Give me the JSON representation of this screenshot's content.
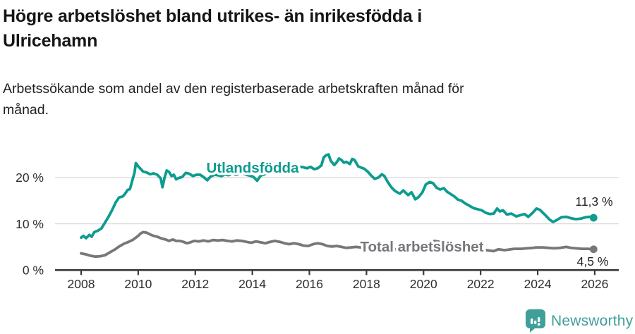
{
  "header": {
    "title": "Högre arbetslöshet bland utrikes- än inrikesfödda i Ulricehamn",
    "title_lines": [
      "Högre arbetslöshet bland utrikes- än inrikesfödda i",
      "Ulricehamn"
    ],
    "subtitle": "Arbetssökande som andel av den registerbaserade arbetskraften månad för månad.",
    "subtitle_lines": [
      "Arbetssökande som andel av den registerbaserade arbetskraften månad för",
      "månad."
    ]
  },
  "footer": {
    "brand": "Newsworthy",
    "brand_color": "#3f9f99",
    "logo_icon": "speech-bubble-bar-chart-icon"
  },
  "colors": {
    "accent_teal": "#0d9c8f",
    "series_gray": "#77777c",
    "grid": "#d9d9d9",
    "axis": "#3b3b3b",
    "text": "#2e2e2e",
    "value_label": "#222222"
  },
  "chart_data": {
    "type": "line",
    "title": "Högre arbetslöshet bland utrikes- än inrikesfödda i Ulricehamn",
    "subtitle": "Arbetssökande som andel av den registerbaserade arbetskraften månad för månad.",
    "grid": "horizontal-only",
    "legend_position": "inline-labels-on-lines",
    "x_axis": {
      "label": "",
      "ticks": [
        2008,
        2010,
        2012,
        2014,
        2016,
        2018,
        2020,
        2022,
        2024,
        2026
      ],
      "tick_labels": [
        "2008",
        "2010",
        "2012",
        "2014",
        "2016",
        "2018",
        "2020",
        "2022",
        "2024",
        "2026"
      ],
      "range": [
        2007.1,
        2026.8
      ]
    },
    "y_axis": {
      "label": "",
      "unit": "%",
      "ticks": [
        0,
        10,
        20
      ],
      "tick_labels": [
        "0 %",
        "10 %",
        "20 %"
      ],
      "range": [
        0,
        26
      ]
    },
    "series": [
      {
        "id": "utlandsfodda",
        "name": "Utlandsfödda",
        "color": "#0d9c8f",
        "end_label": "11,3 %",
        "end_value": 11.3,
        "points": [
          [
            2008.0,
            7.0
          ],
          [
            2008.08,
            7.4
          ],
          [
            2008.17,
            6.9
          ],
          [
            2008.29,
            7.6
          ],
          [
            2008.37,
            7.2
          ],
          [
            2008.46,
            8.2
          ],
          [
            2008.58,
            8.5
          ],
          [
            2008.71,
            9.0
          ],
          [
            2008.83,
            10.2
          ],
          [
            2008.96,
            11.5
          ],
          [
            2009.08,
            12.9
          ],
          [
            2009.21,
            14.6
          ],
          [
            2009.33,
            15.7
          ],
          [
            2009.46,
            15.9
          ],
          [
            2009.54,
            16.5
          ],
          [
            2009.63,
            17.3
          ],
          [
            2009.71,
            17.5
          ],
          [
            2009.79,
            19.3
          ],
          [
            2009.87,
            21.0
          ],
          [
            2009.92,
            23.1
          ],
          [
            2010.0,
            22.4
          ],
          [
            2010.08,
            21.9
          ],
          [
            2010.17,
            21.3
          ],
          [
            2010.29,
            21.1
          ],
          [
            2010.42,
            20.7
          ],
          [
            2010.54,
            20.9
          ],
          [
            2010.67,
            20.6
          ],
          [
            2010.79,
            19.8
          ],
          [
            2010.85,
            17.9
          ],
          [
            2010.92,
            19.9
          ],
          [
            2011.0,
            21.5
          ],
          [
            2011.08,
            21.2
          ],
          [
            2011.17,
            20.3
          ],
          [
            2011.25,
            20.6
          ],
          [
            2011.33,
            19.6
          ],
          [
            2011.42,
            19.9
          ],
          [
            2011.54,
            20.1
          ],
          [
            2011.67,
            21.0
          ],
          [
            2011.79,
            20.8
          ],
          [
            2011.92,
            20.3
          ],
          [
            2012.04,
            20.6
          ],
          [
            2012.17,
            20.6
          ],
          [
            2012.29,
            20.1
          ],
          [
            2012.42,
            19.4
          ],
          [
            2012.54,
            20.2
          ],
          [
            2012.67,
            20.6
          ],
          [
            2012.79,
            20.5
          ],
          [
            2012.92,
            20.3
          ],
          [
            2013.04,
            20.7
          ],
          [
            2013.17,
            20.5
          ],
          [
            2013.29,
            20.9
          ],
          [
            2013.42,
            20.6
          ],
          [
            2013.54,
            20.8
          ],
          [
            2013.67,
            20.9
          ],
          [
            2013.79,
            20.6
          ],
          [
            2013.92,
            20.4
          ],
          [
            2014.04,
            20.1
          ],
          [
            2014.17,
            19.3
          ],
          [
            2014.29,
            20.4
          ],
          [
            2014.42,
            20.7
          ],
          [
            2014.54,
            21.0
          ],
          [
            2014.67,
            21.2
          ],
          [
            2014.79,
            21.0
          ],
          [
            2014.92,
            21.1
          ],
          [
            2015.04,
            21.3
          ],
          [
            2015.17,
            21.2
          ],
          [
            2015.29,
            21.5
          ],
          [
            2015.42,
            21.6
          ],
          [
            2015.54,
            21.9
          ],
          [
            2015.67,
            22.3
          ],
          [
            2015.79,
            22.2
          ],
          [
            2015.92,
            22.0
          ],
          [
            2016.04,
            22.3
          ],
          [
            2016.17,
            21.8
          ],
          [
            2016.29,
            22.0
          ],
          [
            2016.42,
            22.6
          ],
          [
            2016.5,
            24.3
          ],
          [
            2016.58,
            24.8
          ],
          [
            2016.67,
            25.0
          ],
          [
            2016.75,
            23.6
          ],
          [
            2016.87,
            22.7
          ],
          [
            2016.96,
            23.3
          ],
          [
            2017.04,
            24.1
          ],
          [
            2017.12,
            23.8
          ],
          [
            2017.21,
            23.2
          ],
          [
            2017.29,
            23.4
          ],
          [
            2017.42,
            22.9
          ],
          [
            2017.5,
            24.0
          ],
          [
            2017.58,
            23.8
          ],
          [
            2017.71,
            22.4
          ],
          [
            2017.83,
            22.1
          ],
          [
            2017.92,
            21.9
          ],
          [
            2018.04,
            21.3
          ],
          [
            2018.17,
            20.4
          ],
          [
            2018.29,
            19.7
          ],
          [
            2018.42,
            20.0
          ],
          [
            2018.54,
            20.7
          ],
          [
            2018.63,
            20.3
          ],
          [
            2018.75,
            19.0
          ],
          [
            2018.87,
            17.9
          ],
          [
            2019.0,
            17.1
          ],
          [
            2019.17,
            16.5
          ],
          [
            2019.29,
            17.2
          ],
          [
            2019.46,
            16.2
          ],
          [
            2019.58,
            16.8
          ],
          [
            2019.71,
            15.3
          ],
          [
            2019.83,
            15.8
          ],
          [
            2019.96,
            16.8
          ],
          [
            2020.08,
            18.5
          ],
          [
            2020.21,
            19.0
          ],
          [
            2020.33,
            18.8
          ],
          [
            2020.46,
            17.8
          ],
          [
            2020.58,
            17.4
          ],
          [
            2020.71,
            17.7
          ],
          [
            2020.83,
            16.9
          ],
          [
            2020.96,
            16.4
          ],
          [
            2021.08,
            15.9
          ],
          [
            2021.21,
            15.2
          ],
          [
            2021.33,
            15.0
          ],
          [
            2021.46,
            14.4
          ],
          [
            2021.58,
            14.0
          ],
          [
            2021.75,
            13.4
          ],
          [
            2021.92,
            13.1
          ],
          [
            2022.04,
            12.9
          ],
          [
            2022.17,
            12.4
          ],
          [
            2022.33,
            12.1
          ],
          [
            2022.46,
            12.2
          ],
          [
            2022.58,
            13.3
          ],
          [
            2022.67,
            12.7
          ],
          [
            2022.79,
            12.9
          ],
          [
            2022.92,
            12.0
          ],
          [
            2023.08,
            12.2
          ],
          [
            2023.25,
            11.6
          ],
          [
            2023.42,
            11.9
          ],
          [
            2023.54,
            12.1
          ],
          [
            2023.67,
            11.5
          ],
          [
            2023.83,
            12.4
          ],
          [
            2023.96,
            13.3
          ],
          [
            2024.08,
            13.0
          ],
          [
            2024.25,
            12.0
          ],
          [
            2024.42,
            10.9
          ],
          [
            2024.54,
            10.4
          ],
          [
            2024.67,
            10.8
          ],
          [
            2024.83,
            11.4
          ],
          [
            2025.0,
            11.5
          ],
          [
            2025.17,
            11.2
          ],
          [
            2025.33,
            11.0
          ],
          [
            2025.5,
            11.1
          ],
          [
            2025.67,
            11.4
          ],
          [
            2025.83,
            11.5
          ],
          [
            2025.96,
            11.3
          ]
        ]
      },
      {
        "id": "total",
        "name": "Total arbetslöshet",
        "color": "#77777c",
        "end_label": "4,5 %",
        "end_value": 4.5,
        "points": [
          [
            2008.0,
            3.6
          ],
          [
            2008.17,
            3.4
          ],
          [
            2008.33,
            3.1
          ],
          [
            2008.5,
            2.9
          ],
          [
            2008.67,
            3.0
          ],
          [
            2008.83,
            3.2
          ],
          [
            2009.0,
            3.8
          ],
          [
            2009.17,
            4.4
          ],
          [
            2009.33,
            5.1
          ],
          [
            2009.5,
            5.7
          ],
          [
            2009.67,
            6.1
          ],
          [
            2009.83,
            6.6
          ],
          [
            2010.0,
            7.4
          ],
          [
            2010.08,
            7.9
          ],
          [
            2010.17,
            8.2
          ],
          [
            2010.29,
            8.1
          ],
          [
            2010.42,
            7.7
          ],
          [
            2010.54,
            7.4
          ],
          [
            2010.67,
            7.2
          ],
          [
            2010.83,
            6.8
          ],
          [
            2010.96,
            6.6
          ],
          [
            2011.08,
            6.3
          ],
          [
            2011.21,
            6.6
          ],
          [
            2011.33,
            6.3
          ],
          [
            2011.46,
            6.3
          ],
          [
            2011.58,
            6.1
          ],
          [
            2011.71,
            5.8
          ],
          [
            2011.83,
            6.0
          ],
          [
            2011.96,
            6.3
          ],
          [
            2012.13,
            6.2
          ],
          [
            2012.29,
            6.4
          ],
          [
            2012.46,
            6.2
          ],
          [
            2012.63,
            6.5
          ],
          [
            2012.79,
            6.4
          ],
          [
            2012.96,
            6.5
          ],
          [
            2013.13,
            6.3
          ],
          [
            2013.29,
            6.2
          ],
          [
            2013.46,
            6.4
          ],
          [
            2013.63,
            6.3
          ],
          [
            2013.79,
            6.1
          ],
          [
            2013.96,
            5.9
          ],
          [
            2014.13,
            6.2
          ],
          [
            2014.29,
            6.0
          ],
          [
            2014.46,
            5.8
          ],
          [
            2014.63,
            6.1
          ],
          [
            2014.79,
            6.3
          ],
          [
            2014.96,
            6.1
          ],
          [
            2015.13,
            5.8
          ],
          [
            2015.29,
            5.6
          ],
          [
            2015.46,
            5.8
          ],
          [
            2015.63,
            5.6
          ],
          [
            2015.79,
            5.3
          ],
          [
            2015.96,
            5.2
          ],
          [
            2016.13,
            5.6
          ],
          [
            2016.29,
            5.8
          ],
          [
            2016.46,
            5.6
          ],
          [
            2016.63,
            5.2
          ],
          [
            2016.79,
            5.1
          ],
          [
            2016.96,
            5.2
          ],
          [
            2017.13,
            5.0
          ],
          [
            2017.29,
            4.8
          ],
          [
            2017.46,
            4.9
          ],
          [
            2017.63,
            5.0
          ],
          [
            2017.79,
            4.9
          ],
          [
            2017.96,
            4.8
          ],
          [
            2018.21,
            4.7
          ],
          [
            2018.46,
            4.6
          ],
          [
            2018.71,
            4.6
          ],
          [
            2018.96,
            4.5
          ],
          [
            2019.21,
            4.4
          ],
          [
            2019.46,
            4.4
          ],
          [
            2019.71,
            4.5
          ],
          [
            2019.96,
            4.9
          ],
          [
            2020.21,
            5.8
          ],
          [
            2020.38,
            6.3
          ],
          [
            2020.58,
            6.1
          ],
          [
            2020.83,
            5.8
          ],
          [
            2021.08,
            5.5
          ],
          [
            2021.33,
            5.2
          ],
          [
            2021.58,
            4.9
          ],
          [
            2021.83,
            4.6
          ],
          [
            2022.08,
            4.4
          ],
          [
            2022.33,
            4.2
          ],
          [
            2022.46,
            4.1
          ],
          [
            2022.63,
            4.5
          ],
          [
            2022.83,
            4.3
          ],
          [
            2022.96,
            4.4
          ],
          [
            2023.17,
            4.6
          ],
          [
            2023.42,
            4.6
          ],
          [
            2023.63,
            4.7
          ],
          [
            2023.83,
            4.8
          ],
          [
            2023.96,
            4.9
          ],
          [
            2024.17,
            4.9
          ],
          [
            2024.38,
            4.8
          ],
          [
            2024.58,
            4.7
          ],
          [
            2024.79,
            4.8
          ],
          [
            2025.0,
            5.0
          ],
          [
            2025.17,
            4.8
          ],
          [
            2025.33,
            4.7
          ],
          [
            2025.54,
            4.6
          ],
          [
            2025.75,
            4.6
          ],
          [
            2025.96,
            4.5
          ]
        ]
      }
    ]
  }
}
